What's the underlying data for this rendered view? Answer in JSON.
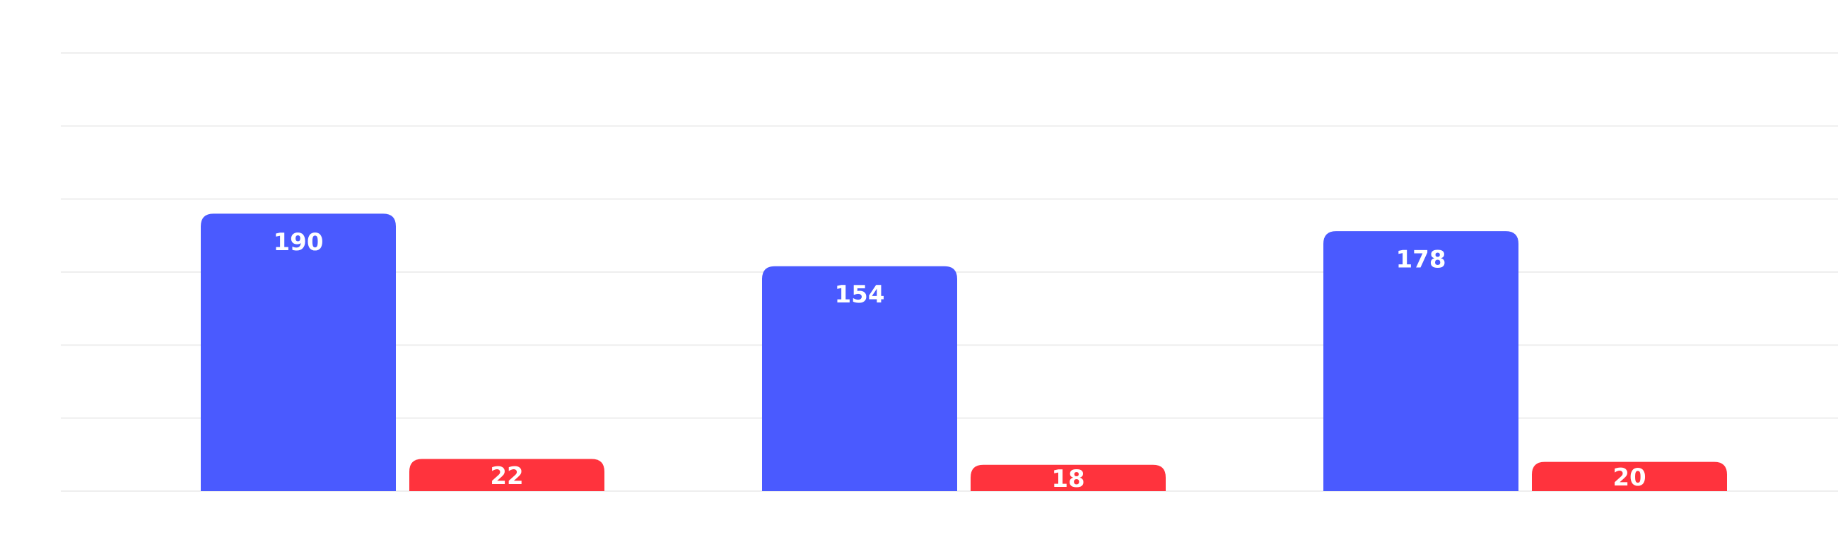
{
  "chart_data": {
    "type": "bar",
    "categories": [
      "",
      "",
      ""
    ],
    "series": [
      {
        "values": [
          190,
          154,
          178
        ],
        "color": "#4A5AFF"
      },
      {
        "values": [
          22,
          18,
          20
        ],
        "color": "#FF333D"
      }
    ],
    "ylim": [
      0,
      300
    ],
    "grid": true,
    "legend": "none",
    "data_labels": true
  }
}
